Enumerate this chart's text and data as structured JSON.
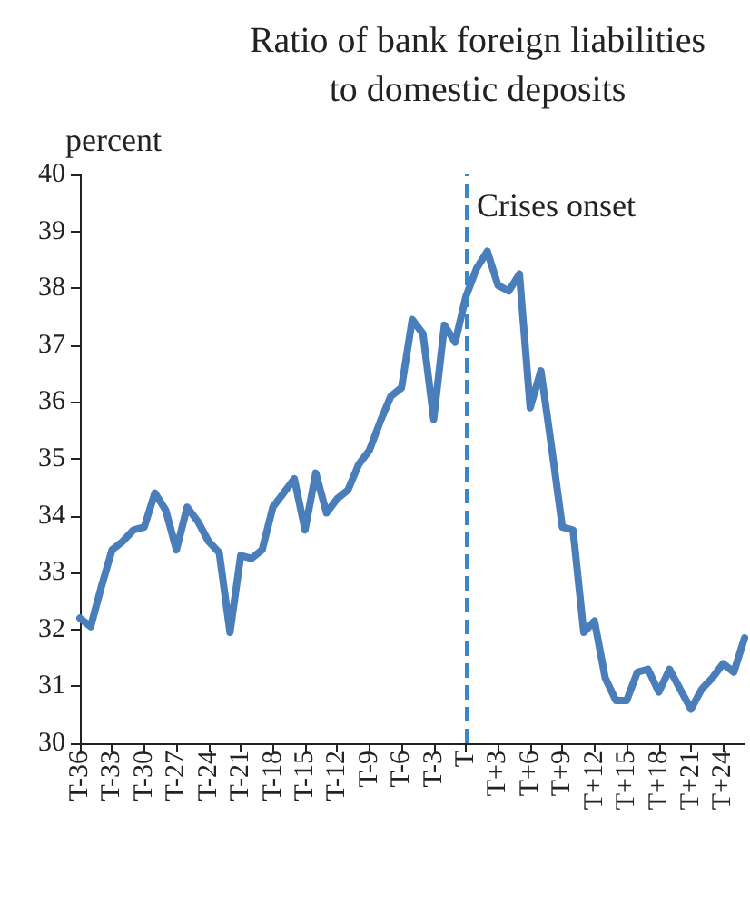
{
  "chart_data": {
    "type": "line",
    "title": "Ratio of bank foreign liabilities\nto domestic deposits",
    "ylabel": "percent",
    "categories": [
      "T-36",
      null,
      null,
      "T-33",
      null,
      null,
      "T-30",
      null,
      null,
      "T-27",
      null,
      null,
      "T-24",
      null,
      null,
      "T-21",
      null,
      null,
      "T-18",
      null,
      null,
      "T-15",
      null,
      null,
      "T-12",
      null,
      null,
      "T-9",
      null,
      null,
      "T-6",
      null,
      null,
      "T-3",
      null,
      null,
      "T",
      null,
      null,
      "T+3",
      null,
      null,
      "T+6",
      null,
      null,
      "T+9",
      null,
      null,
      "T+12",
      null,
      null,
      "T+15",
      null,
      null,
      "T+18",
      null,
      null,
      "T+21",
      null,
      null,
      "T+24",
      null,
      null
    ],
    "series": [
      {
        "color": "#4a7ebb",
        "values": [
          32.2,
          32.05,
          32.75,
          33.4,
          33.55,
          33.75,
          33.8,
          34.4,
          34.1,
          33.4,
          34.15,
          33.9,
          33.55,
          33.35,
          31.95,
          33.3,
          33.25,
          33.4,
          34.15,
          34.4,
          34.65,
          33.75,
          34.75,
          34.05,
          34.3,
          34.45,
          34.9,
          35.15,
          35.65,
          36.1,
          36.25,
          37.45,
          37.2,
          35.7,
          37.35,
          37.05,
          37.85,
          38.35,
          38.65,
          38.05,
          37.95,
          38.25,
          35.9,
          36.55,
          35.2,
          33.8,
          33.75,
          31.95,
          32.15,
          31.15,
          30.75,
          30.75,
          31.25,
          31.3,
          30.9,
          31.3,
          30.95,
          30.6,
          30.95,
          31.15,
          31.4,
          31.25,
          31.85
        ]
      }
    ],
    "ylim": [
      30,
      40
    ],
    "yticks": [
      30,
      31,
      32,
      33,
      34,
      35,
      36,
      37,
      38,
      39,
      40
    ],
    "grid": false,
    "marker": "none",
    "line_style": "solid",
    "ref_lines": [
      {
        "axis": "x",
        "value": "T",
        "label": "Crises onset",
        "color": "#3a87c8",
        "line_style": "dashed"
      }
    ]
  }
}
